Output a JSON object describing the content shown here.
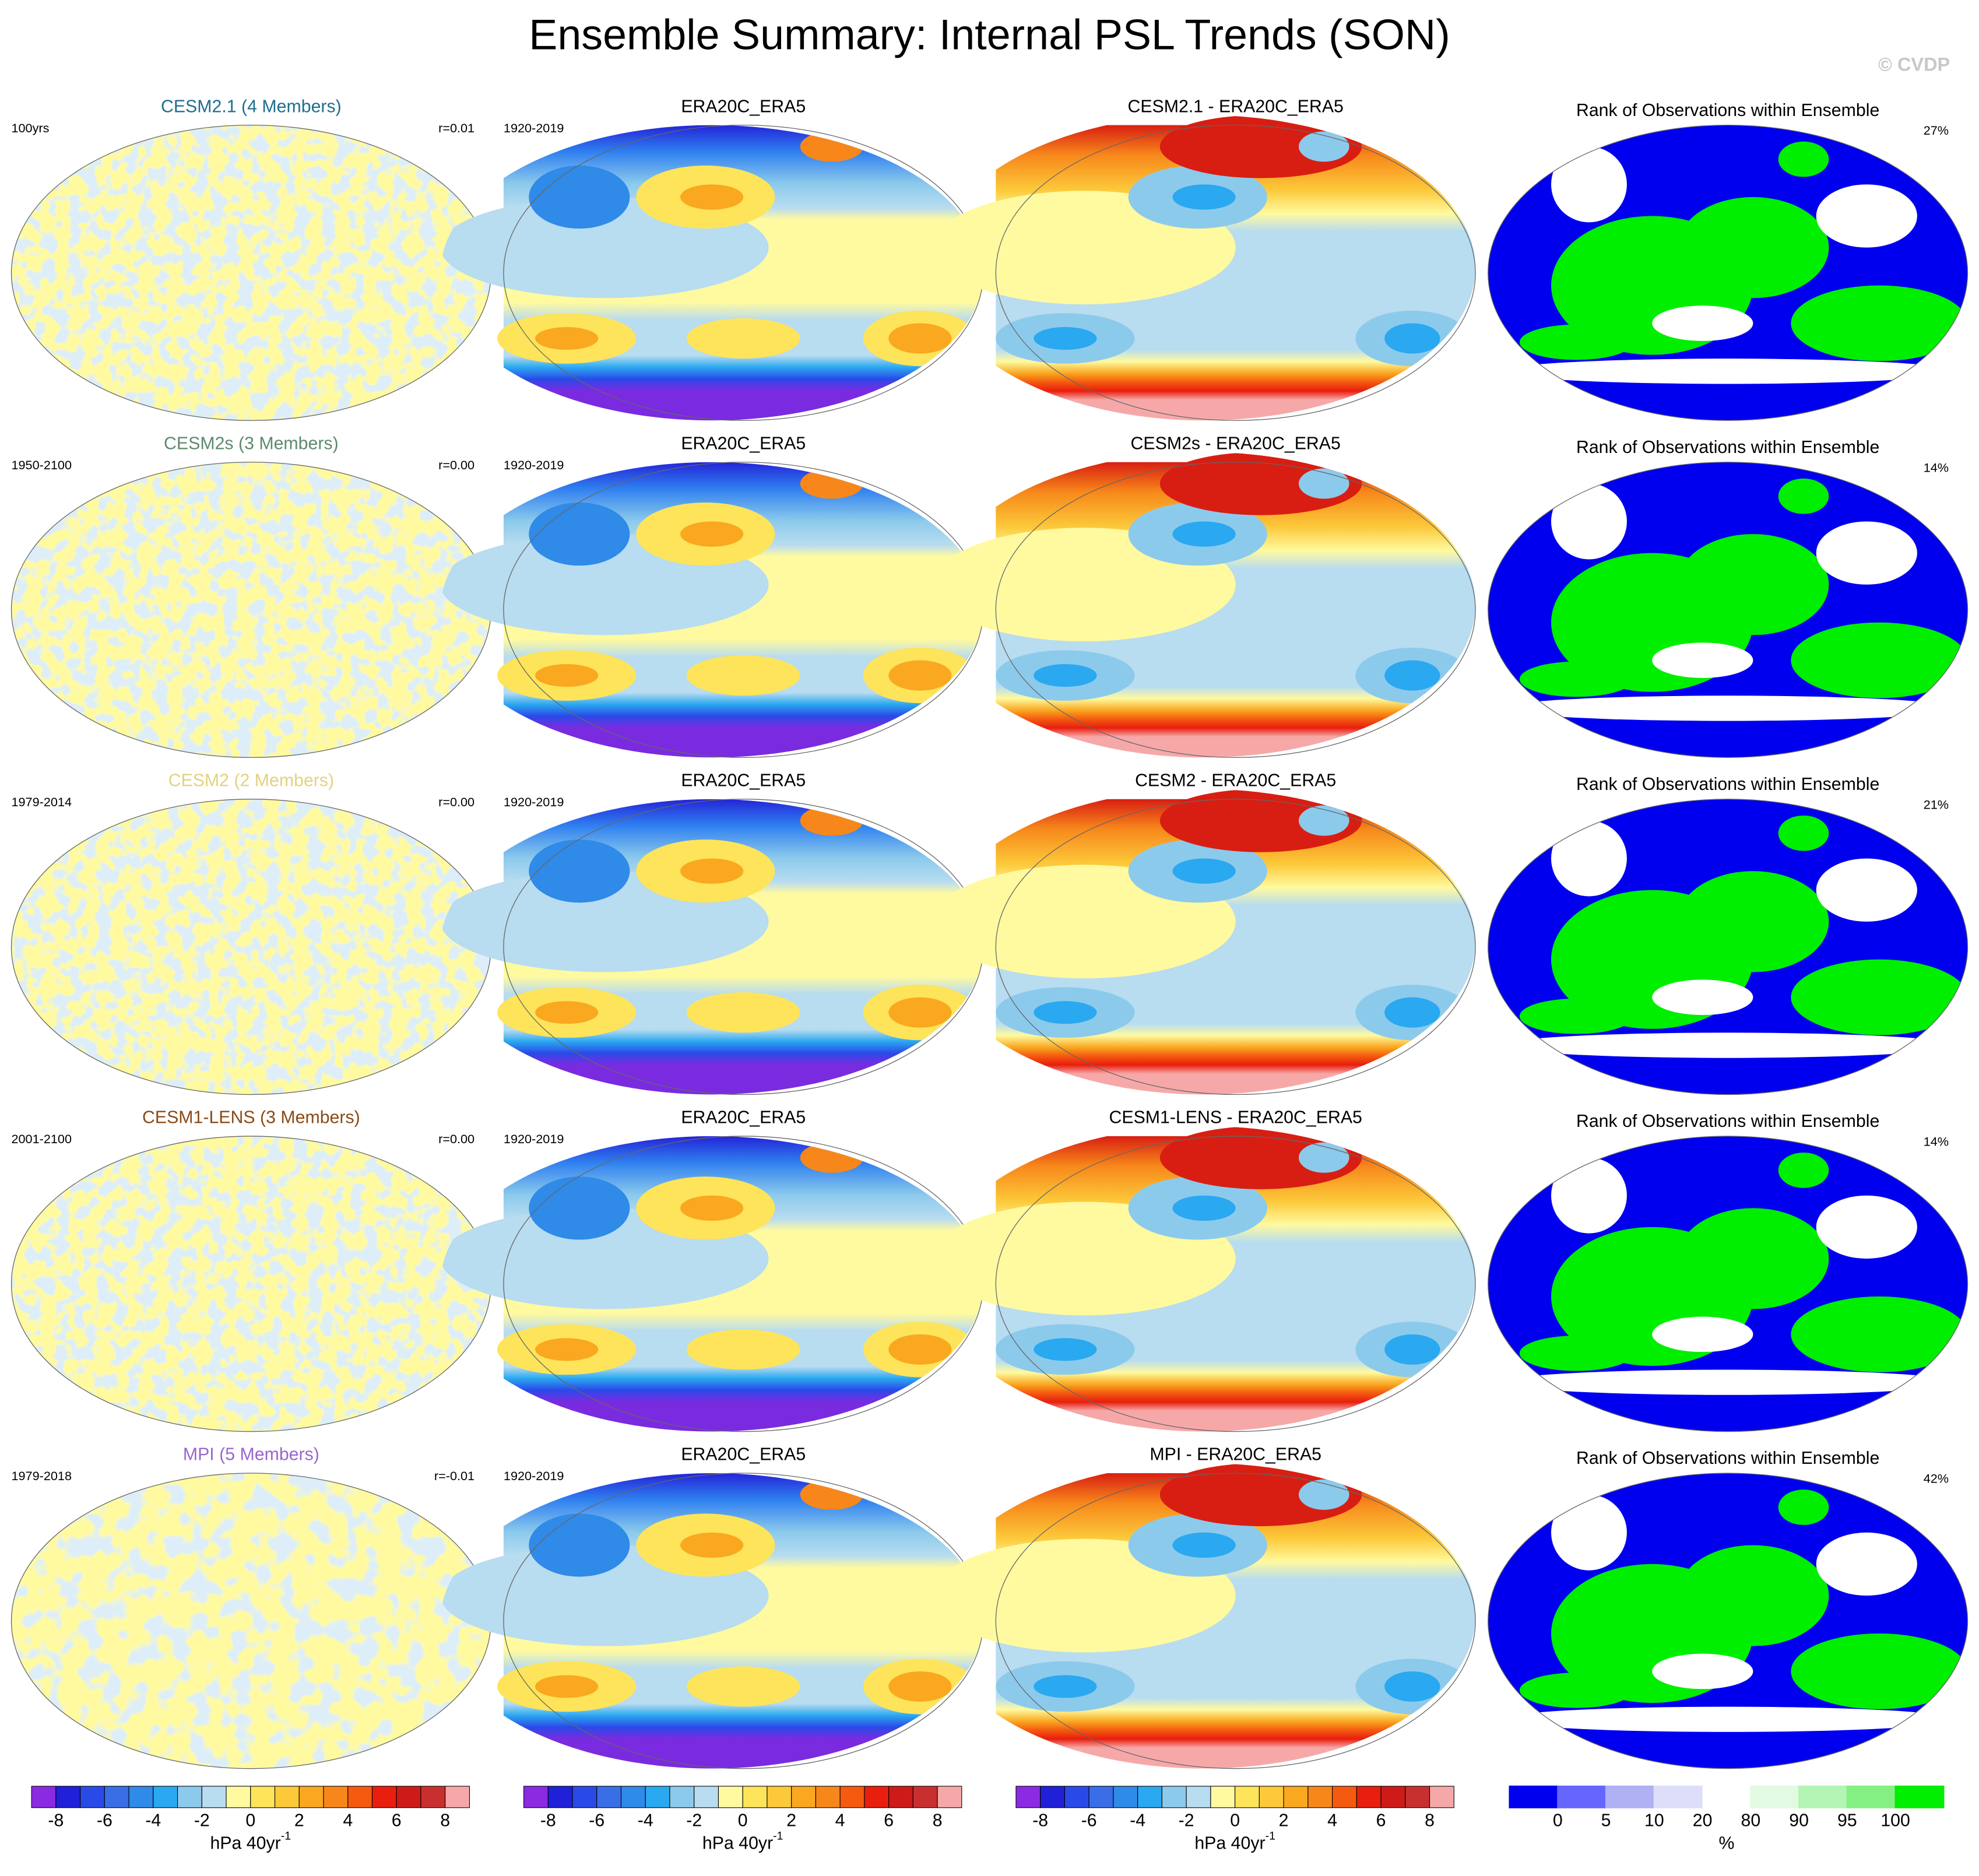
{
  "title": "Ensemble Summary: Internal PSL Trends (SON)",
  "watermark": "© CVDP",
  "rows": [
    {
      "model": {
        "title": "CESM2.1 (4 Members)",
        "color": "#1f6e8f",
        "period": "100yrs",
        "r": "r=0.01"
      },
      "obs": {
        "title": "ERA20C_ERA5",
        "period": "1920-2019"
      },
      "diff": {
        "title": "CESM2.1 - ERA20C_ERA5"
      },
      "rank": {
        "title": "Rank of Observations within Ensemble",
        "percent": "27%"
      }
    },
    {
      "model": {
        "title": "CESM2s (3 Members)",
        "color": "#5f8a6c",
        "period": "1950-2100",
        "r": "r=0.00"
      },
      "obs": {
        "title": "ERA20C_ERA5",
        "period": "1920-2019"
      },
      "diff": {
        "title": "CESM2s - ERA20C_ERA5"
      },
      "rank": {
        "title": "Rank of Observations within Ensemble",
        "percent": "14%"
      }
    },
    {
      "model": {
        "title": "CESM2 (2 Members)",
        "color": "#e3d27e",
        "period": "1979-2014",
        "r": "r=0.00"
      },
      "obs": {
        "title": "ERA20C_ERA5",
        "period": "1920-2019"
      },
      "diff": {
        "title": "CESM2 - ERA20C_ERA5"
      },
      "rank": {
        "title": "Rank of Observations within Ensemble",
        "percent": "21%"
      }
    },
    {
      "model": {
        "title": "CESM1-LENS (3 Members)",
        "color": "#8b4a16",
        "period": "2001-2100",
        "r": "r=0.00"
      },
      "obs": {
        "title": "ERA20C_ERA5",
        "period": "1920-2019"
      },
      "diff": {
        "title": "CESM1-LENS - ERA20C_ERA5"
      },
      "rank": {
        "title": "Rank of Observations within Ensemble",
        "percent": "14%"
      }
    },
    {
      "model": {
        "title": "MPI (5 Members)",
        "color": "#9a66d0",
        "period": "1979-2018",
        "r": "r=-0.01"
      },
      "obs": {
        "title": "ERA20C_ERA5",
        "period": "1920-2019"
      },
      "diff": {
        "title": "MPI - ERA20C_ERA5"
      },
      "rank": {
        "title": "Rank of Observations within Ensemble",
        "percent": "42%"
      }
    }
  ],
  "psl_colorbar": {
    "colors": [
      "#8a2be2",
      "#2020d8",
      "#2a4ae8",
      "#3a6ee6",
      "#2f8ae8",
      "#2aa8f0",
      "#8ccaec",
      "#b8dcf0",
      "#fffaa0",
      "#fde45a",
      "#fcc93a",
      "#f9a820",
      "#f7871a",
      "#f45a10",
      "#e81e0e",
      "#cf1a1a",
      "#c83030",
      "#f6a8a8"
    ],
    "range": [
      -9,
      9
    ],
    "ticks": [
      -8,
      -6,
      -4,
      -2,
      0,
      2,
      4,
      6,
      8
    ],
    "unit": "hPa 40yr",
    "unit_exponent": "-1"
  },
  "rank_colorbar": {
    "colors": [
      "#0000ee",
      "#6666ff",
      "#b0b0f4",
      "#dedefa",
      "#ffffff",
      "#e2fae2",
      "#b4f4b4",
      "#84f084",
      "#00ee00"
    ],
    "ticks": [
      0,
      5,
      10,
      20,
      80,
      90,
      95,
      100
    ],
    "unit": "%"
  }
}
